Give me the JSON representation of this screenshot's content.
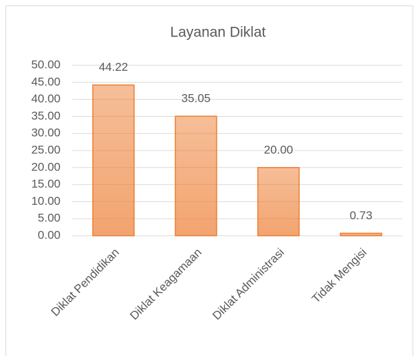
{
  "chart_data": {
    "type": "bar",
    "title": "Layanan Diklat",
    "categories": [
      "Diklat Pendidikan",
      "Diklat Keagamaan",
      "Diklat Administrasi",
      "Tidak Mengisi"
    ],
    "values": [
      44.22,
      35.05,
      20,
      0.73
    ],
    "value_labels": [
      "44.22",
      "35.05",
      "20.00",
      "0.73"
    ],
    "color": "#ed7d31",
    "ylim": [
      0,
      50
    ],
    "yticks": [
      {
        "value": 0,
        "label": "0.00"
      },
      {
        "value": 5,
        "label": "5.00"
      },
      {
        "value": 10,
        "label": "10.00"
      },
      {
        "value": 15,
        "label": "15.00"
      },
      {
        "value": 20,
        "label": "20.00"
      },
      {
        "value": 25,
        "label": "25.00"
      },
      {
        "value": 30,
        "label": "30.00"
      },
      {
        "value": 35,
        "label": "35.00"
      },
      {
        "value": 40,
        "label": "40.00"
      },
      {
        "value": 45,
        "label": "45.00"
      },
      {
        "value": 50,
        "label": "50.00"
      }
    ],
    "grid": true
  }
}
